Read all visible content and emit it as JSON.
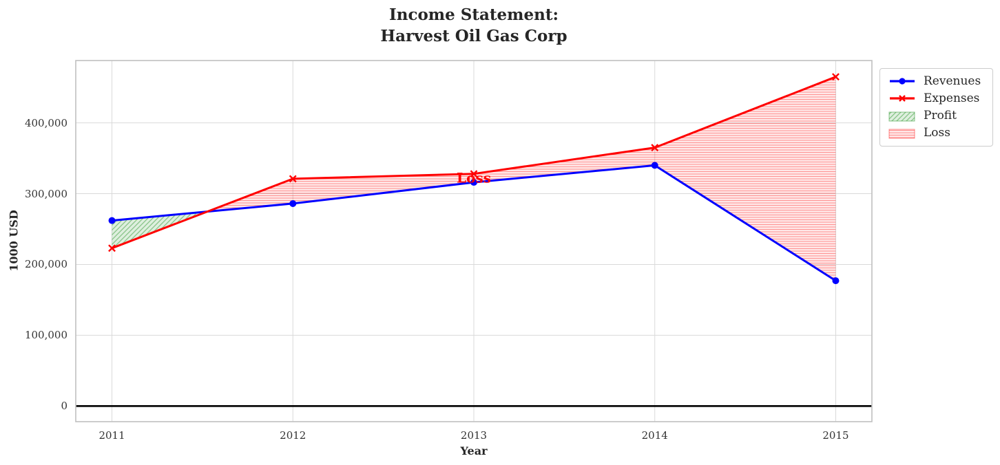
{
  "chart_data": {
    "type": "line",
    "title_lines": [
      "Income Statement:",
      "Harvest Oil Gas Corp"
    ],
    "xlabel": "Year",
    "ylabel": "1000 USD",
    "x": [
      2011,
      2012,
      2013,
      2014,
      2015
    ],
    "xtick_labels": [
      "2011",
      "2012",
      "2013",
      "2014",
      "2015"
    ],
    "yticks": [
      0,
      100000,
      200000,
      300000,
      400000
    ],
    "ytick_labels": [
      "0",
      "100,000",
      "200,000",
      "300,000",
      "400,000"
    ],
    "xlim": [
      2010.8,
      2015.2
    ],
    "ylim": [
      -22000,
      488000
    ],
    "grid": true,
    "series": [
      {
        "name": "Revenues",
        "color": "#0000ff",
        "marker": "circle",
        "values": [
          262000,
          286000,
          316000,
          340000,
          177000
        ]
      },
      {
        "name": "Expenses",
        "color": "#ff0000",
        "marker": "x",
        "values": [
          223000,
          321000,
          328000,
          365000,
          465000
        ]
      }
    ],
    "fills": [
      {
        "name": "Profit",
        "color": "#008000",
        "hatch": "diagonal",
        "region": "Revenues > Expenses"
      },
      {
        "name": "Loss",
        "color": "#ff0000",
        "hatch": "horizontal",
        "region": "Expenses > Revenues"
      }
    ],
    "annotations": [
      {
        "text": "Loss",
        "x": 2013,
        "y": 322000,
        "color": "#ff0000"
      }
    ],
    "zero_line": {
      "y": 0,
      "color": "#000000"
    },
    "legend_position": "outside upper right"
  }
}
